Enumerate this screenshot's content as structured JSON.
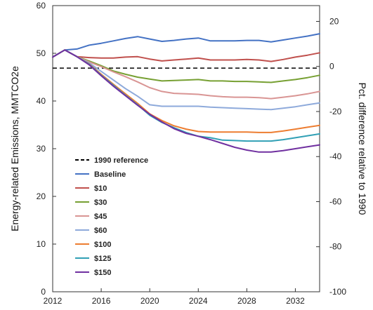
{
  "chart_data": {
    "type": "line",
    "title": "",
    "ylabel_left": "Energy-related Emissions, MMTCO2e",
    "ylabel_right": "Pct. difference relative to 1990",
    "xlabel": "",
    "xlim": [
      2012,
      2034
    ],
    "ylim_left": [
      0,
      60
    ],
    "ylim_right": [
      -100,
      27
    ],
    "x_ticks": [
      2012,
      2016,
      2020,
      2024,
      2028,
      2032
    ],
    "y_left_ticks": [
      0,
      10,
      20,
      30,
      40,
      50,
      60
    ],
    "y_right_ticks": [
      -100,
      -80,
      -60,
      -40,
      -20,
      0,
      20
    ],
    "grid": false,
    "legend_position": "bottom-left",
    "reference": {
      "name": "1990 reference",
      "value": 46.9,
      "color": "#000000",
      "style": "dashed"
    },
    "series": [
      {
        "name": "Baseline",
        "color": "#4472c4",
        "x": [
          2012,
          2013,
          2014,
          2015,
          2016,
          2017,
          2018,
          2019,
          2020,
          2021,
          2022,
          2023,
          2024,
          2025,
          2026,
          2027,
          2028,
          2029,
          2030,
          2031,
          2032,
          2033,
          2034
        ],
        "values": [
          49.2,
          50.7,
          50.9,
          51.7,
          52.1,
          52.6,
          53.1,
          53.5,
          53.0,
          52.5,
          52.7,
          53.0,
          53.2,
          52.6,
          52.6,
          52.6,
          52.7,
          52.7,
          52.4,
          52.8,
          53.2,
          53.6,
          54.1
        ]
      },
      {
        "name": "$10",
        "color": "#c0504d",
        "x": [
          2012,
          2013,
          2014,
          2015,
          2016,
          2017,
          2018,
          2019,
          2020,
          2021,
          2022,
          2023,
          2024,
          2025,
          2026,
          2027,
          2028,
          2029,
          2030,
          2031,
          2032,
          2033,
          2034
        ],
        "values": [
          49.2,
          50.7,
          49.3,
          49.1,
          49.0,
          49.0,
          49.2,
          49.3,
          48.8,
          48.4,
          48.6,
          48.8,
          49.0,
          48.6,
          48.6,
          48.6,
          48.7,
          48.6,
          48.3,
          48.7,
          49.2,
          49.6,
          50.1
        ]
      },
      {
        "name": "$30",
        "color": "#77a033",
        "x": [
          2012,
          2013,
          2014,
          2015,
          2016,
          2017,
          2018,
          2019,
          2020,
          2021,
          2022,
          2023,
          2024,
          2025,
          2026,
          2027,
          2028,
          2029,
          2030,
          2031,
          2032,
          2033,
          2034
        ],
        "values": [
          49.2,
          50.7,
          49.3,
          48.4,
          47.4,
          46.3,
          45.6,
          45.0,
          44.6,
          44.2,
          44.3,
          44.4,
          44.5,
          44.2,
          44.2,
          44.1,
          44.1,
          44.0,
          43.9,
          44.2,
          44.5,
          44.9,
          45.4
        ]
      },
      {
        "name": "$45",
        "color": "#d99594",
        "x": [
          2012,
          2013,
          2014,
          2015,
          2016,
          2017,
          2018,
          2019,
          2020,
          2021,
          2022,
          2023,
          2024,
          2025,
          2026,
          2027,
          2028,
          2029,
          2030,
          2031,
          2032,
          2033,
          2034
        ],
        "values": [
          49.2,
          50.7,
          49.3,
          48.2,
          47.2,
          46.1,
          45.1,
          44.0,
          42.8,
          42.0,
          41.6,
          41.5,
          41.4,
          41.1,
          40.9,
          40.8,
          40.8,
          40.7,
          40.5,
          40.8,
          41.1,
          41.5,
          42.0
        ]
      },
      {
        "name": "$60",
        "color": "#8eaadb",
        "x": [
          2012,
          2013,
          2014,
          2015,
          2016,
          2017,
          2018,
          2019,
          2020,
          2021,
          2022,
          2023,
          2024,
          2025,
          2026,
          2027,
          2028,
          2029,
          2030,
          2031,
          2032,
          2033,
          2034
        ],
        "values": [
          49.2,
          50.7,
          49.3,
          48.0,
          46.2,
          44.4,
          42.6,
          41.0,
          39.2,
          38.9,
          38.9,
          38.9,
          38.9,
          38.7,
          38.6,
          38.5,
          38.4,
          38.3,
          38.2,
          38.5,
          38.8,
          39.2,
          39.6
        ]
      },
      {
        "name": "$100",
        "color": "#ed7d31",
        "x": [
          2012,
          2013,
          2014,
          2015,
          2016,
          2017,
          2018,
          2019,
          2020,
          2021,
          2022,
          2023,
          2024,
          2025,
          2026,
          2027,
          2028,
          2029,
          2030,
          2031,
          2032,
          2033,
          2034
        ],
        "values": [
          49.2,
          50.7,
          49.3,
          47.8,
          45.6,
          43.5,
          41.5,
          39.5,
          37.3,
          35.9,
          34.8,
          34.1,
          33.6,
          33.5,
          33.5,
          33.5,
          33.5,
          33.4,
          33.4,
          33.7,
          34.1,
          34.5,
          34.9
        ]
      },
      {
        "name": "$125",
        "color": "#31a0b5",
        "x": [
          2012,
          2013,
          2014,
          2015,
          2016,
          2017,
          2018,
          2019,
          2020,
          2021,
          2022,
          2023,
          2024,
          2025,
          2026,
          2027,
          2028,
          2029,
          2030,
          2031,
          2032,
          2033,
          2034
        ],
        "values": [
          49.2,
          50.7,
          49.3,
          47.7,
          45.4,
          43.3,
          41.2,
          39.2,
          37.0,
          35.5,
          34.4,
          33.4,
          32.6,
          32.3,
          31.8,
          31.7,
          31.6,
          31.6,
          31.6,
          31.9,
          32.3,
          32.7,
          33.1
        ]
      },
      {
        "name": "$150",
        "color": "#7030a0",
        "x": [
          2012,
          2013,
          2014,
          2015,
          2016,
          2017,
          2018,
          2019,
          2020,
          2021,
          2022,
          2023,
          2024,
          2025,
          2026,
          2027,
          2028,
          2029,
          2030,
          2031,
          2032,
          2033,
          2034
        ],
        "values": [
          49.2,
          50.7,
          49.3,
          47.6,
          45.3,
          43.1,
          41.1,
          39.1,
          37.2,
          35.6,
          34.2,
          33.2,
          32.6,
          31.9,
          31.1,
          30.3,
          29.7,
          29.3,
          29.3,
          29.6,
          30.0,
          30.4,
          30.8
        ]
      }
    ]
  }
}
